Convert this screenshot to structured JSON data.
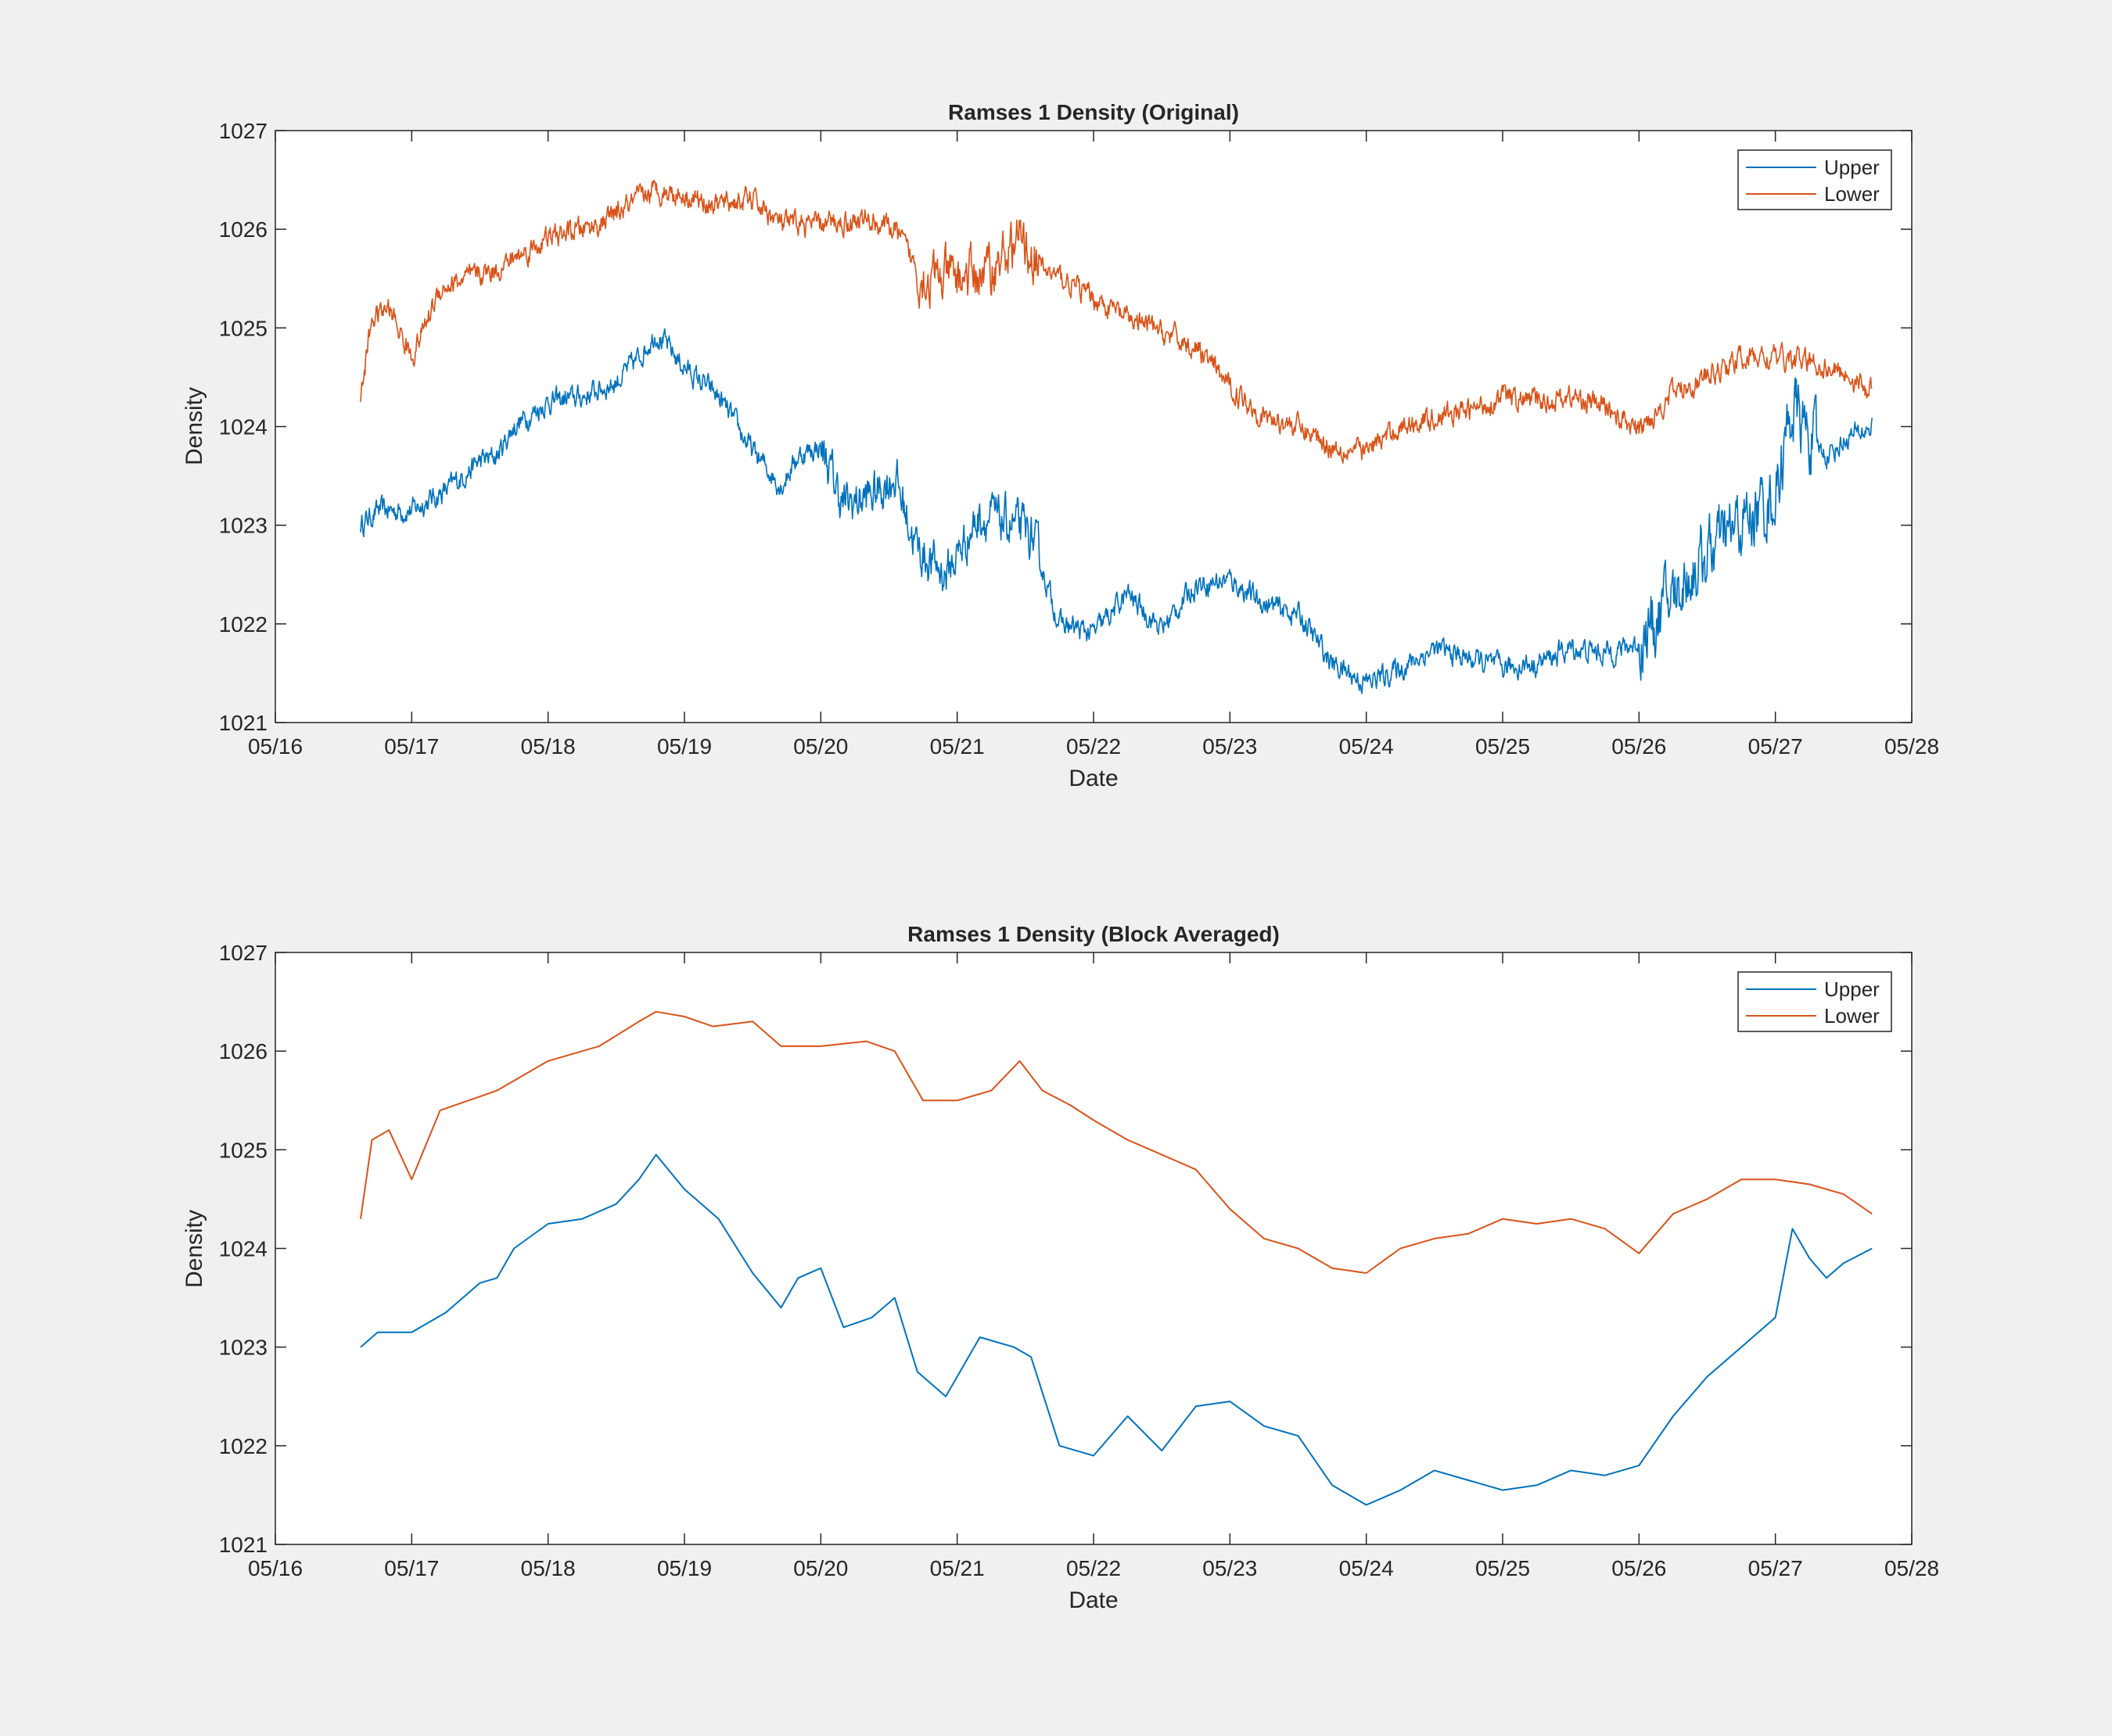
{
  "colors": {
    "figure_background": "#f0f0f0",
    "axes_background": "#ffffff",
    "axes_color": "#262626",
    "upper": "#0072bd",
    "lower": "#d95319"
  },
  "chart_data": [
    {
      "type": "line",
      "title": "Ramses 1 Density (Original)",
      "xlabel": "Date",
      "ylabel": "Density",
      "x_unit": "date (2000 display: mm/dd)",
      "xlim": [
        "05/16",
        "05/28"
      ],
      "xticks": [
        "05/16",
        "05/17",
        "05/18",
        "05/19",
        "05/20",
        "05/21",
        "05/22",
        "05/23",
        "05/24",
        "05/25",
        "05/26",
        "05/27",
        "05/28"
      ],
      "ylim": [
        1021,
        1027
      ],
      "yticks": [
        "1021",
        "1022",
        "1023",
        "1024",
        "1025",
        "1026",
        "1027"
      ],
      "grid": false,
      "legend": {
        "position": "top-right",
        "entries": [
          "Upper",
          "Lower"
        ]
      },
      "note_noise": "high-frequency fluctuations drawn around the smooth series",
      "series": [
        {
          "name": "Upper",
          "color": "#0072bd",
          "x": [
            "05/16 15:00",
            "05/16 18:00",
            "05/17 00:00",
            "05/17 03:00",
            "05/17 06:00",
            "05/17 09:00",
            "05/17 12:00",
            "05/17 15:00",
            "05/17 18:00",
            "05/18 00:00",
            "05/18 06:00",
            "05/18 12:00",
            "05/18 16:00",
            "05/18 19:00",
            "05/19 00:00",
            "05/19 06:00",
            "05/19 12:00",
            "05/19 17:00",
            "05/19 20:00",
            "05/20 00:00",
            "05/20 04:00",
            "05/20 09:00",
            "05/20 13:00",
            "05/20 17:00",
            "05/20 22:00",
            "05/21 04:00",
            "05/21 10:00",
            "05/21 13:00",
            "05/21 18:00",
            "05/22 00:00",
            "05/22 06:00",
            "05/22 12:00",
            "05/22 18:00",
            "05/23 00:00",
            "05/23 06:00",
            "05/23 12:00",
            "05/23 18:00",
            "05/24 00:00",
            "05/24 06:00",
            "05/24 12:00",
            "05/24 18:00",
            "05/25 00:00",
            "05/25 06:00",
            "05/25 12:00",
            "05/25 18:00",
            "05/26 00:00",
            "05/26 06:00",
            "05/26 12:00",
            "05/26 18:00",
            "05/27 00:00",
            "05/27 03:00",
            "05/27 06:00",
            "05/27 09:00",
            "05/27 12:00",
            "05/27 17:00"
          ],
          "y": [
            1023.0,
            1023.15,
            1023.15,
            1023.25,
            1023.35,
            1023.5,
            1023.65,
            1023.7,
            1024.0,
            1024.25,
            1024.3,
            1024.45,
            1024.7,
            1024.95,
            1024.6,
            1024.3,
            1023.75,
            1023.4,
            1023.7,
            1023.8,
            1023.2,
            1023.3,
            1023.5,
            1022.75,
            1022.5,
            1023.1,
            1023.0,
            1022.9,
            1022.0,
            1021.9,
            1022.3,
            1021.95,
            1022.4,
            1022.45,
            1022.2,
            1022.1,
            1021.6,
            1021.4,
            1021.55,
            1021.75,
            1021.65,
            1021.55,
            1021.6,
            1021.75,
            1021.7,
            1021.8,
            1022.3,
            1022.7,
            1023.0,
            1023.3,
            1024.2,
            1023.9,
            1023.7,
            1023.85,
            1024.0
          ]
        },
        {
          "name": "Lower",
          "color": "#d95319",
          "x": [
            "05/16 15:00",
            "05/16 17:00",
            "05/16 20:00",
            "05/17 00:00",
            "05/17 05:00",
            "05/17 10:00",
            "05/17 15:00",
            "05/18 00:00",
            "05/18 09:00",
            "05/18 16:00",
            "05/18 19:00",
            "05/19 00:00",
            "05/19 05:00",
            "05/19 12:00",
            "05/19 17:00",
            "05/20 00:00",
            "05/20 08:00",
            "05/20 13:00",
            "05/20 18:00",
            "05/21 00:00",
            "05/21 06:00",
            "05/21 11:00",
            "05/21 15:00",
            "05/21 20:00",
            "05/22 00:00",
            "05/22 06:00",
            "05/22 12:00",
            "05/22 18:00",
            "05/23 00:00",
            "05/23 06:00",
            "05/23 12:00",
            "05/23 18:00",
            "05/24 00:00",
            "05/24 06:00",
            "05/24 12:00",
            "05/24 18:00",
            "05/25 00:00",
            "05/25 06:00",
            "05/25 12:00",
            "05/25 18:00",
            "05/26 00:00",
            "05/26 06:00",
            "05/26 12:00",
            "05/26 18:00",
            "05/27 00:00",
            "05/27 06:00",
            "05/27 12:00",
            "05/27 17:00"
          ],
          "y": [
            1024.3,
            1025.1,
            1025.2,
            1024.7,
            1025.4,
            1025.5,
            1025.6,
            1025.9,
            1026.05,
            1026.3,
            1026.4,
            1026.35,
            1026.25,
            1026.3,
            1026.05,
            1026.05,
            1026.1,
            1026.0,
            1025.5,
            1025.5,
            1025.6,
            1025.9,
            1025.6,
            1025.45,
            1025.3,
            1025.1,
            1024.95,
            1024.8,
            1024.4,
            1024.1,
            1024.0,
            1023.8,
            1023.75,
            1024.0,
            1024.1,
            1024.15,
            1024.3,
            1024.25,
            1024.3,
            1024.2,
            1023.95,
            1024.35,
            1024.5,
            1024.7,
            1024.7,
            1024.65,
            1024.55,
            1024.35
          ]
        }
      ]
    },
    {
      "type": "line",
      "title": "Ramses 1 Density (Block Averaged)",
      "xlabel": "Date",
      "ylabel": "Density",
      "xlim": [
        "05/16",
        "05/28"
      ],
      "xticks": [
        "05/16",
        "05/17",
        "05/18",
        "05/19",
        "05/20",
        "05/21",
        "05/22",
        "05/23",
        "05/24",
        "05/25",
        "05/26",
        "05/27",
        "05/28"
      ],
      "ylim": [
        1021,
        1027
      ],
      "yticks": [
        "1021",
        "1022",
        "1023",
        "1024",
        "1025",
        "1026",
        "1027"
      ],
      "grid": false,
      "legend": {
        "position": "top-right",
        "entries": [
          "Upper",
          "Lower"
        ]
      },
      "series": [
        {
          "name": "Upper",
          "color": "#0072bd",
          "x": [
            "05/16 15:00",
            "05/16 18:00",
            "05/17 00:00",
            "05/17 03:00",
            "05/17 06:00",
            "05/17 09:00",
            "05/17 12:00",
            "05/17 15:00",
            "05/17 18:00",
            "05/18 00:00",
            "05/18 06:00",
            "05/18 12:00",
            "05/18 16:00",
            "05/18 19:00",
            "05/19 00:00",
            "05/19 06:00",
            "05/19 12:00",
            "05/19 17:00",
            "05/19 20:00",
            "05/20 00:00",
            "05/20 04:00",
            "05/20 09:00",
            "05/20 13:00",
            "05/20 17:00",
            "05/20 22:00",
            "05/21 04:00",
            "05/21 10:00",
            "05/21 13:00",
            "05/21 18:00",
            "05/22 00:00",
            "05/22 06:00",
            "05/22 12:00",
            "05/22 18:00",
            "05/23 00:00",
            "05/23 06:00",
            "05/23 12:00",
            "05/23 18:00",
            "05/24 00:00",
            "05/24 06:00",
            "05/24 12:00",
            "05/24 18:00",
            "05/25 00:00",
            "05/25 06:00",
            "05/25 12:00",
            "05/25 18:00",
            "05/26 00:00",
            "05/26 06:00",
            "05/26 12:00",
            "05/26 18:00",
            "05/27 00:00",
            "05/27 03:00",
            "05/27 06:00",
            "05/27 09:00",
            "05/27 12:00",
            "05/27 17:00"
          ],
          "y": [
            1023.0,
            1023.15,
            1023.15,
            1023.25,
            1023.35,
            1023.5,
            1023.65,
            1023.7,
            1024.0,
            1024.25,
            1024.3,
            1024.45,
            1024.7,
            1024.95,
            1024.6,
            1024.3,
            1023.75,
            1023.4,
            1023.7,
            1023.8,
            1023.2,
            1023.3,
            1023.5,
            1022.75,
            1022.5,
            1023.1,
            1023.0,
            1022.9,
            1022.0,
            1021.9,
            1022.3,
            1021.95,
            1022.4,
            1022.45,
            1022.2,
            1022.1,
            1021.6,
            1021.4,
            1021.55,
            1021.75,
            1021.65,
            1021.55,
            1021.6,
            1021.75,
            1021.7,
            1021.8,
            1022.3,
            1022.7,
            1023.0,
            1023.3,
            1024.2,
            1023.9,
            1023.7,
            1023.85,
            1024.0
          ]
        },
        {
          "name": "Lower",
          "color": "#d95319",
          "x": [
            "05/16 15:00",
            "05/16 17:00",
            "05/16 20:00",
            "05/17 00:00",
            "05/17 05:00",
            "05/17 10:00",
            "05/17 15:00",
            "05/18 00:00",
            "05/18 09:00",
            "05/18 16:00",
            "05/18 19:00",
            "05/19 00:00",
            "05/19 05:00",
            "05/19 12:00",
            "05/19 17:00",
            "05/20 00:00",
            "05/20 08:00",
            "05/20 13:00",
            "05/20 18:00",
            "05/21 00:00",
            "05/21 06:00",
            "05/21 11:00",
            "05/21 15:00",
            "05/21 20:00",
            "05/22 00:00",
            "05/22 06:00",
            "05/22 12:00",
            "05/22 18:00",
            "05/23 00:00",
            "05/23 06:00",
            "05/23 12:00",
            "05/23 18:00",
            "05/24 00:00",
            "05/24 06:00",
            "05/24 12:00",
            "05/24 18:00",
            "05/25 00:00",
            "05/25 06:00",
            "05/25 12:00",
            "05/25 18:00",
            "05/26 00:00",
            "05/26 06:00",
            "05/26 12:00",
            "05/26 18:00",
            "05/27 00:00",
            "05/27 06:00",
            "05/27 12:00",
            "05/27 17:00"
          ],
          "y": [
            1024.3,
            1025.1,
            1025.2,
            1024.7,
            1025.4,
            1025.5,
            1025.6,
            1025.9,
            1026.05,
            1026.3,
            1026.4,
            1026.35,
            1026.25,
            1026.3,
            1026.05,
            1026.05,
            1026.1,
            1026.0,
            1025.5,
            1025.5,
            1025.6,
            1025.9,
            1025.6,
            1025.45,
            1025.3,
            1025.1,
            1024.95,
            1024.8,
            1024.4,
            1024.1,
            1024.0,
            1023.8,
            1023.75,
            1024.0,
            1024.1,
            1024.15,
            1024.3,
            1024.25,
            1024.3,
            1024.2,
            1023.95,
            1024.35,
            1024.5,
            1024.7,
            1024.7,
            1024.65,
            1024.55,
            1024.35
          ]
        }
      ]
    }
  ]
}
